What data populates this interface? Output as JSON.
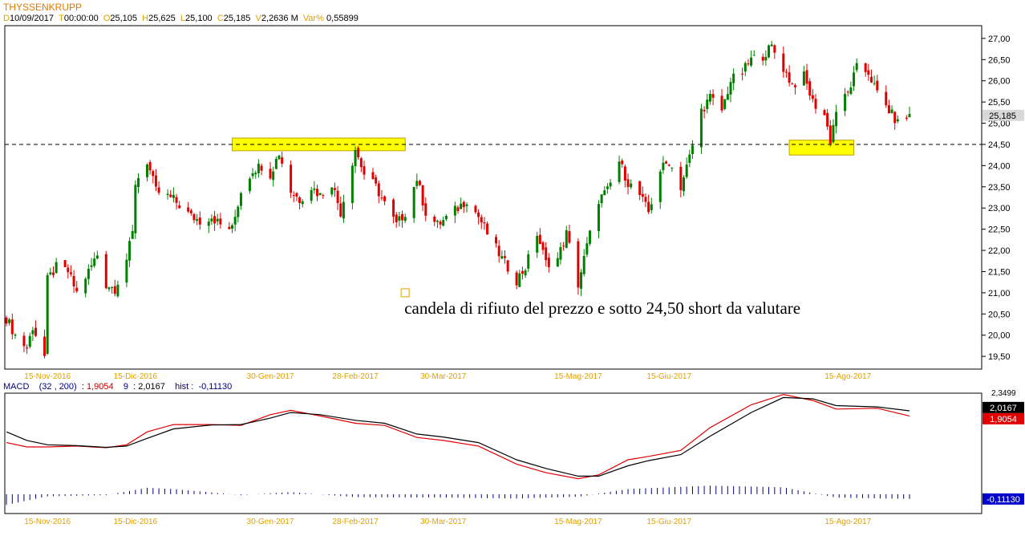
{
  "header": {
    "title": "THYSSENKRUPP",
    "date_key": "D",
    "date": "10/09/2017",
    "time_key": "T",
    "time": "00:00:00",
    "open_key": "O",
    "open": "25,105",
    "high_key": "H",
    "high": "25,625",
    "low_key": "L",
    "low": "25,100",
    "close_key": "C",
    "close": "25,185",
    "volume_key": "V",
    "volume": "2,2636 M",
    "var_key": "Var%",
    "var": "0,55899"
  },
  "macd_header": {
    "name": "MACD",
    "params": "(32 , 200)",
    "macd_value": "1,9054",
    "signal_period": "9",
    "signal_value": "2,0167",
    "hist_label": "hist :",
    "hist_value": "-0,11130"
  },
  "annotation": {
    "text": "candela di rifiuto del prezzo e sotto 24,50 short da valutare"
  },
  "colors": {
    "up": "#008000",
    "down": "#e00000",
    "highlight": "#ffff00",
    "hist": "#000080",
    "date_label": "#e0a000"
  },
  "chart_data": [
    {
      "type": "candlestick",
      "title": "THYSSENKRUPP",
      "x_tick_labels": [
        "15-Nov-2016",
        "15-Dic-2016",
        "30-Gen-2017",
        "28-Feb-2017",
        "30-Mar-2017",
        "15-Mag-2017",
        "15-Giu-2017",
        "15-Ago-2017"
      ],
      "y_tick_labels": [
        "19,50",
        "20,00",
        "20,50",
        "21,00",
        "21,50",
        "22,00",
        "22,50",
        "23,00",
        "23,50",
        "24,00",
        "24,50",
        "25,00",
        "25,50",
        "26,00",
        "26,50",
        "27,00"
      ],
      "ylim": [
        19.2,
        27.3
      ],
      "last_price_label": "25,185",
      "last_price": 25.185,
      "horizontal_line": 24.5,
      "close_path": [
        {
          "x": "2016-11-01",
          "y": 20.4
        },
        {
          "x": "2016-11-04",
          "y": 20.0
        },
        {
          "x": "2016-11-08",
          "y": 19.7
        },
        {
          "x": "2016-11-10",
          "y": 20.2
        },
        {
          "x": "2016-11-14",
          "y": 19.5
        },
        {
          "x": "2016-11-15",
          "y": 21.3
        },
        {
          "x": "2016-11-18",
          "y": 21.6
        },
        {
          "x": "2016-11-22",
          "y": 21.5
        },
        {
          "x": "2016-11-25",
          "y": 21.0
        },
        {
          "x": "2016-11-29",
          "y": 21.5
        },
        {
          "x": "2016-12-02",
          "y": 21.9
        },
        {
          "x": "2016-12-05",
          "y": 21.2
        },
        {
          "x": "2016-12-08",
          "y": 21.1
        },
        {
          "x": "2016-12-12",
          "y": 21.8
        },
        {
          "x": "2016-12-14",
          "y": 22.4
        },
        {
          "x": "2016-12-15",
          "y": 23.6
        },
        {
          "x": "2016-12-19",
          "y": 24.1
        },
        {
          "x": "2016-12-22",
          "y": 23.4
        },
        {
          "x": "2016-12-28",
          "y": 23.2
        },
        {
          "x": "2017-01-03",
          "y": 22.8
        },
        {
          "x": "2017-01-06",
          "y": 22.7
        },
        {
          "x": "2017-01-10",
          "y": 22.8
        },
        {
          "x": "2017-01-13",
          "y": 22.6
        },
        {
          "x": "2017-01-17",
          "y": 22.5
        },
        {
          "x": "2017-01-20",
          "y": 23.4
        },
        {
          "x": "2017-01-24",
          "y": 23.9
        },
        {
          "x": "2017-01-27",
          "y": 24.0
        },
        {
          "x": "2017-01-30",
          "y": 23.8
        },
        {
          "x": "2017-02-02",
          "y": 24.3
        },
        {
          "x": "2017-02-06",
          "y": 23.4
        },
        {
          "x": "2017-02-09",
          "y": 23.2
        },
        {
          "x": "2017-02-13",
          "y": 23.5
        },
        {
          "x": "2017-02-16",
          "y": 23.3
        },
        {
          "x": "2017-02-20",
          "y": 23.6
        },
        {
          "x": "2017-02-23",
          "y": 22.9
        },
        {
          "x": "2017-02-28",
          "y": 24.4
        },
        {
          "x": "2017-03-03",
          "y": 23.8
        },
        {
          "x": "2017-03-07",
          "y": 23.5
        },
        {
          "x": "2017-03-10",
          "y": 23.1
        },
        {
          "x": "2017-03-14",
          "y": 22.6
        },
        {
          "x": "2017-03-17",
          "y": 22.9
        },
        {
          "x": "2017-03-21",
          "y": 23.7
        },
        {
          "x": "2017-03-24",
          "y": 22.9
        },
        {
          "x": "2017-03-28",
          "y": 22.6
        },
        {
          "x": "2017-03-30",
          "y": 22.7
        },
        {
          "x": "2017-04-04",
          "y": 23.0
        },
        {
          "x": "2017-04-07",
          "y": 23.2
        },
        {
          "x": "2017-04-11",
          "y": 22.8
        },
        {
          "x": "2017-04-14",
          "y": 22.4
        },
        {
          "x": "2017-04-19",
          "y": 21.8
        },
        {
          "x": "2017-04-24",
          "y": 21.3
        },
        {
          "x": "2017-04-27",
          "y": 21.6
        },
        {
          "x": "2017-05-01",
          "y": 22.4
        },
        {
          "x": "2017-05-04",
          "y": 21.7
        },
        {
          "x": "2017-05-08",
          "y": 21.8
        },
        {
          "x": "2017-05-11",
          "y": 22.4
        },
        {
          "x": "2017-05-15",
          "y": 21.2
        },
        {
          "x": "2017-05-18",
          "y": 22.1
        },
        {
          "x": "2017-05-22",
          "y": 23.2
        },
        {
          "x": "2017-05-25",
          "y": 23.4
        },
        {
          "x": "2017-05-29",
          "y": 24.1
        },
        {
          "x": "2017-06-01",
          "y": 23.6
        },
        {
          "x": "2017-06-05",
          "y": 23.3
        },
        {
          "x": "2017-06-08",
          "y": 22.9
        },
        {
          "x": "2017-06-12",
          "y": 23.9
        },
        {
          "x": "2017-06-15",
          "y": 24.1
        },
        {
          "x": "2017-06-19",
          "y": 23.5
        },
        {
          "x": "2017-06-22",
          "y": 24.2
        },
        {
          "x": "2017-06-26",
          "y": 25.3
        },
        {
          "x": "2017-06-29",
          "y": 25.6
        },
        {
          "x": "2017-07-03",
          "y": 25.3
        },
        {
          "x": "2017-07-06",
          "y": 26.0
        },
        {
          "x": "2017-07-10",
          "y": 26.2
        },
        {
          "x": "2017-07-13",
          "y": 26.5
        },
        {
          "x": "2017-07-17",
          "y": 26.6
        },
        {
          "x": "2017-07-20",
          "y": 26.8
        },
        {
          "x": "2017-07-24",
          "y": 26.3
        },
        {
          "x": "2017-07-27",
          "y": 25.9
        },
        {
          "x": "2017-07-31",
          "y": 26.1
        },
        {
          "x": "2017-08-03",
          "y": 25.5
        },
        {
          "x": "2017-08-07",
          "y": 25.2
        },
        {
          "x": "2017-08-09",
          "y": 24.6
        },
        {
          "x": "2017-08-11",
          "y": 25.3
        },
        {
          "x": "2017-08-15",
          "y": 25.7
        },
        {
          "x": "2017-08-18",
          "y": 26.3
        },
        {
          "x": "2017-08-22",
          "y": 26.2
        },
        {
          "x": "2017-08-25",
          "y": 25.7
        },
        {
          "x": "2017-08-29",
          "y": 25.3
        },
        {
          "x": "2017-09-01",
          "y": 25.0
        },
        {
          "x": "2017-09-05",
          "y": 25.185
        }
      ],
      "highlight_zones": [
        {
          "from": "2017-01-17",
          "to": "2017-03-17",
          "y_low": 24.35,
          "y_high": 24.65
        },
        {
          "from": "2017-07-26",
          "to": "2017-08-17",
          "y_low": 24.25,
          "y_high": 24.6
        }
      ],
      "annotation_marker": {
        "x": "2017-03-17",
        "y": 21.0
      }
    },
    {
      "type": "line",
      "title": "MACD",
      "x_tick_labels": [
        "15-Nov-2016",
        "15-Dic-2016",
        "30-Gen-2017",
        "28-Feb-2017",
        "30-Mar-2017",
        "15-Mag-2017",
        "15-Giu-2017",
        "15-Ago-2017"
      ],
      "top_label": "2,3499",
      "ylim": [
        -0.45,
        2.35
      ],
      "series": [
        {
          "name": "MACD (32 , 200)",
          "color": "#e00000",
          "points": [
            {
              "x": "2016-11-01",
              "y": 1.2
            },
            {
              "x": "2016-11-08",
              "y": 1.1
            },
            {
              "x": "2016-11-15",
              "y": 1.1
            },
            {
              "x": "2016-11-25",
              "y": 1.12
            },
            {
              "x": "2016-12-05",
              "y": 1.08
            },
            {
              "x": "2016-12-12",
              "y": 1.15
            },
            {
              "x": "2016-12-19",
              "y": 1.45
            },
            {
              "x": "2016-12-28",
              "y": 1.62
            },
            {
              "x": "2017-01-10",
              "y": 1.62
            },
            {
              "x": "2017-01-20",
              "y": 1.6
            },
            {
              "x": "2017-01-30",
              "y": 1.85
            },
            {
              "x": "2017-02-06",
              "y": 1.95
            },
            {
              "x": "2017-02-16",
              "y": 1.82
            },
            {
              "x": "2017-02-28",
              "y": 1.65
            },
            {
              "x": "2017-03-10",
              "y": 1.6
            },
            {
              "x": "2017-03-21",
              "y": 1.32
            },
            {
              "x": "2017-03-30",
              "y": 1.25
            },
            {
              "x": "2017-04-11",
              "y": 1.12
            },
            {
              "x": "2017-04-24",
              "y": 0.7
            },
            {
              "x": "2017-05-04",
              "y": 0.5
            },
            {
              "x": "2017-05-15",
              "y": 0.36
            },
            {
              "x": "2017-05-22",
              "y": 0.45
            },
            {
              "x": "2017-06-01",
              "y": 0.8
            },
            {
              "x": "2017-06-08",
              "y": 0.88
            },
            {
              "x": "2017-06-19",
              "y": 1.02
            },
            {
              "x": "2017-06-29",
              "y": 1.55
            },
            {
              "x": "2017-07-13",
              "y": 2.08
            },
            {
              "x": "2017-07-24",
              "y": 2.32
            },
            {
              "x": "2017-08-03",
              "y": 2.18
            },
            {
              "x": "2017-08-11",
              "y": 1.98
            },
            {
              "x": "2017-08-25",
              "y": 2.0
            },
            {
              "x": "2017-09-05",
              "y": 1.82
            }
          ]
        },
        {
          "name": "Signal 9",
          "color": "#000000",
          "points": [
            {
              "x": "2016-11-01",
              "y": 1.45
            },
            {
              "x": "2016-11-08",
              "y": 1.25
            },
            {
              "x": "2016-11-15",
              "y": 1.15
            },
            {
              "x": "2016-11-25",
              "y": 1.13
            },
            {
              "x": "2016-12-05",
              "y": 1.09
            },
            {
              "x": "2016-12-12",
              "y": 1.12
            },
            {
              "x": "2016-12-19",
              "y": 1.3
            },
            {
              "x": "2016-12-28",
              "y": 1.52
            },
            {
              "x": "2017-01-10",
              "y": 1.61
            },
            {
              "x": "2017-01-20",
              "y": 1.62
            },
            {
              "x": "2017-01-30",
              "y": 1.77
            },
            {
              "x": "2017-02-06",
              "y": 1.9
            },
            {
              "x": "2017-02-16",
              "y": 1.85
            },
            {
              "x": "2017-02-28",
              "y": 1.72
            },
            {
              "x": "2017-03-10",
              "y": 1.65
            },
            {
              "x": "2017-03-21",
              "y": 1.4
            },
            {
              "x": "2017-03-30",
              "y": 1.33
            },
            {
              "x": "2017-04-11",
              "y": 1.2
            },
            {
              "x": "2017-04-24",
              "y": 0.8
            },
            {
              "x": "2017-05-04",
              "y": 0.6
            },
            {
              "x": "2017-05-15",
              "y": 0.42
            },
            {
              "x": "2017-05-22",
              "y": 0.42
            },
            {
              "x": "2017-06-01",
              "y": 0.66
            },
            {
              "x": "2017-06-08",
              "y": 0.78
            },
            {
              "x": "2017-06-19",
              "y": 0.92
            },
            {
              "x": "2017-06-29",
              "y": 1.35
            },
            {
              "x": "2017-07-13",
              "y": 1.9
            },
            {
              "x": "2017-07-24",
              "y": 2.25
            },
            {
              "x": "2017-08-03",
              "y": 2.22
            },
            {
              "x": "2017-08-11",
              "y": 2.06
            },
            {
              "x": "2017-08-25",
              "y": 2.03
            },
            {
              "x": "2017-09-05",
              "y": 1.94
            }
          ]
        }
      ],
      "histogram": {
        "name": "hist",
        "color": "#000080",
        "points": [
          {
            "x": "2016-11-01",
            "y": -0.25
          },
          {
            "x": "2016-11-15",
            "y": -0.05
          },
          {
            "x": "2016-12-05",
            "y": -0.02
          },
          {
            "x": "2016-12-19",
            "y": 0.15
          },
          {
            "x": "2016-12-28",
            "y": 0.12
          },
          {
            "x": "2017-01-20",
            "y": -0.02
          },
          {
            "x": "2017-02-06",
            "y": 0.05
          },
          {
            "x": "2017-02-28",
            "y": -0.07
          },
          {
            "x": "2017-03-30",
            "y": -0.08
          },
          {
            "x": "2017-04-24",
            "y": -0.1
          },
          {
            "x": "2017-05-15",
            "y": -0.06
          },
          {
            "x": "2017-06-01",
            "y": 0.12
          },
          {
            "x": "2017-06-29",
            "y": 0.2
          },
          {
            "x": "2017-07-24",
            "y": 0.16
          },
          {
            "x": "2017-08-11",
            "y": -0.08
          },
          {
            "x": "2017-09-05",
            "y": -0.11
          }
        ]
      },
      "right_labels": [
        {
          "text": "2,0167",
          "value": 2.0167,
          "bg": "#000000"
        },
        {
          "text": "1,9054",
          "value": 1.9054,
          "bg": "#e00000"
        },
        {
          "text": "-0,11130",
          "value": -0.1113,
          "bg": "#0000cc"
        }
      ]
    }
  ]
}
